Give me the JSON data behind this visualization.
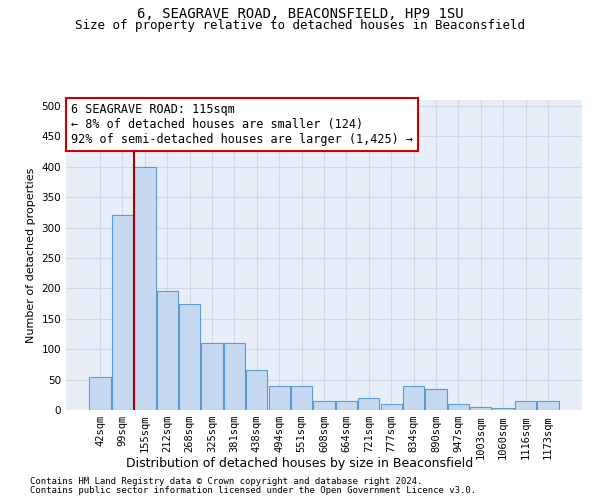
{
  "title1": "6, SEAGRAVE ROAD, BEACONSFIELD, HP9 1SU",
  "title2": "Size of property relative to detached houses in Beaconsfield",
  "xlabel": "Distribution of detached houses by size in Beaconsfield",
  "ylabel": "Number of detached properties",
  "footer1": "Contains HM Land Registry data © Crown copyright and database right 2024.",
  "footer2": "Contains public sector information licensed under the Open Government Licence v3.0.",
  "annotation_line1": "6 SEAGRAVE ROAD: 115sqm",
  "annotation_line2": "← 8% of detached houses are smaller (124)",
  "annotation_line3": "92% of semi-detached houses are larger (1,425) →",
  "categories": [
    "42sqm",
    "99sqm",
    "155sqm",
    "212sqm",
    "268sqm",
    "325sqm",
    "381sqm",
    "438sqm",
    "494sqm",
    "551sqm",
    "608sqm",
    "664sqm",
    "721sqm",
    "777sqm",
    "834sqm",
    "890sqm",
    "947sqm",
    "1003sqm",
    "1060sqm",
    "1116sqm",
    "1173sqm"
  ],
  "values": [
    55,
    320,
    400,
    195,
    175,
    110,
    110,
    65,
    40,
    40,
    15,
    15,
    20,
    10,
    40,
    35,
    10,
    5,
    3,
    15,
    15
  ],
  "bar_color": "#c6d9f0",
  "bar_edge_color": "#5b9bd5",
  "grid_color": "#d0d8e8",
  "background_color": "#e8eef8",
  "vline_color": "#aa0000",
  "annotation_box_edge": "#cc0000",
  "ylim": [
    0,
    510
  ],
  "yticks": [
    0,
    50,
    100,
    150,
    200,
    250,
    300,
    350,
    400,
    450,
    500
  ]
}
